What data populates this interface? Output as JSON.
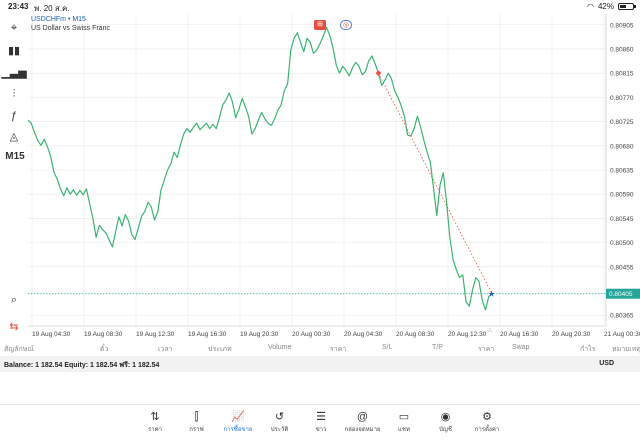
{
  "status_bar": {
    "time": "23:43",
    "date": "พ. 20 ส.ค.",
    "battery": "42%"
  },
  "toolbar": {
    "items": [
      {
        "icon": "crosshair-icon",
        "glyph": "⌖"
      },
      {
        "icon": "candles-icon",
        "glyph": "▮▮"
      },
      {
        "icon": "volume-bars-icon",
        "glyph": "▁▃▅"
      },
      {
        "icon": "indicators-icon",
        "glyph": "⫶"
      },
      {
        "icon": "function-icon",
        "glyph": "ƒ"
      },
      {
        "icon": "shapes-icon",
        "glyph": "◬"
      },
      {
        "icon": "timeframe",
        "glyph": "M15"
      }
    ],
    "bottom": [
      {
        "icon": "zoom-icon",
        "glyph": "⌕"
      },
      {
        "icon": "trade-icon",
        "glyph": "⇆"
      }
    ]
  },
  "chart": {
    "symbol": "USDCHFm • M15",
    "description": "US Dollar vs Swiss Franc",
    "current_price_label": "0.80405",
    "colors": {
      "line": "#3cb371",
      "price": "#26a69a",
      "grid": "#e8e8e8",
      "trend": "#e74c3c"
    }
  },
  "chart_data": {
    "type": "line",
    "y_ticks": [
      "0.80905",
      "0.80860",
      "0.80815",
      "0.80770",
      "0.80725",
      "0.80680",
      "0.80635",
      "0.80590",
      "0.80545",
      "0.80500",
      "0.80455",
      "0.80365"
    ],
    "x_ticks": [
      "19 Aug 04:30",
      "19 Aug 08:30",
      "19 Aug 12:30",
      "19 Aug 16:30",
      "19 Aug 20:30",
      "20 Aug 00:30",
      "20 Aug 04:30",
      "20 Aug 08:30",
      "20 Aug 12:30",
      "20 Aug 16:30",
      "20 Aug 20:30",
      "21 Aug 00:30"
    ],
    "ylim": [
      0.80345,
      0.80925
    ],
    "last_price": 0.80405,
    "series": [
      {
        "values": [
          0.80728,
          0.80722,
          0.80705,
          0.8069,
          0.80681,
          0.80692,
          0.80678,
          0.8066,
          0.80631,
          0.80618,
          0.806,
          0.80587,
          0.80602,
          0.8059,
          0.80598,
          0.80588,
          0.80597,
          0.80589,
          0.806,
          0.80572,
          0.80545,
          0.8051,
          0.80532,
          0.80524,
          0.80518,
          0.80505,
          0.80492,
          0.8052,
          0.80548,
          0.80531,
          0.80552,
          0.8054,
          0.80515,
          0.80506,
          0.80527,
          0.80549,
          0.80558,
          0.80575,
          0.80566,
          0.80542,
          0.80557,
          0.80598,
          0.80616,
          0.80635,
          0.80646,
          0.80668,
          0.80658,
          0.80682,
          0.80702,
          0.80712,
          0.80705,
          0.80715,
          0.80722,
          0.8071,
          0.80716,
          0.80722,
          0.80712,
          0.8072,
          0.80712,
          0.80732,
          0.80756,
          0.80765,
          0.80778,
          0.80762,
          0.80732,
          0.80748,
          0.80768,
          0.80752,
          0.80735,
          0.80702,
          0.80712,
          0.80728,
          0.80742,
          0.8073,
          0.80722,
          0.80718,
          0.8073,
          0.80746,
          0.80756,
          0.80782,
          0.80795,
          0.80858,
          0.8088,
          0.8089,
          0.80872,
          0.80855,
          0.8088,
          0.80872,
          0.80852,
          0.80858,
          0.8087,
          0.80884,
          0.809,
          0.80885,
          0.80862,
          0.8083,
          0.80815,
          0.80828,
          0.8082,
          0.8081,
          0.80825,
          0.80835,
          0.80828,
          0.80812,
          0.80818,
          0.80838,
          0.80847,
          0.80832,
          0.80815,
          0.80792,
          0.80802,
          0.80815,
          0.80805,
          0.80782,
          0.8077,
          0.80755,
          0.80735,
          0.807,
          0.80698,
          0.80712,
          0.80735,
          0.80715,
          0.8069,
          0.80668,
          0.8065,
          0.806,
          0.8055,
          0.80608,
          0.8063,
          0.80575,
          0.8051,
          0.80468,
          0.8045,
          0.80435,
          0.8044,
          0.8039,
          0.80382,
          0.80412,
          0.80435,
          0.80428,
          0.80392,
          0.80375,
          0.804,
          0.80405
        ]
      }
    ]
  },
  "table_columns": [
    "สัญลักษณ์",
    "ตั๋ว",
    "เวลา",
    "ประเภท",
    "Volume",
    "ราคา",
    "S/L",
    "T/P",
    "ราคา",
    "Swap",
    "กำไร",
    "หมายเหตุ"
  ],
  "balance": {
    "text": "Balance: 1 182.54 Equity: 1 182.54 ฟรี: 1 182.54",
    "currency": "USD"
  },
  "tabs": [
    {
      "label": "ราคา",
      "icon": "quotes-icon",
      "glyph": "⇅"
    },
    {
      "label": "กราฟ",
      "icon": "chart-icon",
      "glyph": "⫿"
    },
    {
      "label": "การซื้อขาย",
      "icon": "trade-icon",
      "glyph": "📈"
    },
    {
      "label": "ประวัติ",
      "icon": "history-icon",
      "glyph": "↺"
    },
    {
      "label": "ข่าว",
      "icon": "news-icon",
      "glyph": "☰"
    },
    {
      "label": "กล่องจดหมาย",
      "icon": "mail-icon",
      "glyph": "@"
    },
    {
      "label": "แชท",
      "icon": "chat-icon",
      "glyph": "▭"
    },
    {
      "label": "บัญชี",
      "icon": "account-icon",
      "glyph": "◉"
    },
    {
      "label": "การตั้งค่า",
      "icon": "settings-icon",
      "glyph": "⚙"
    }
  ],
  "active_tab": 2
}
